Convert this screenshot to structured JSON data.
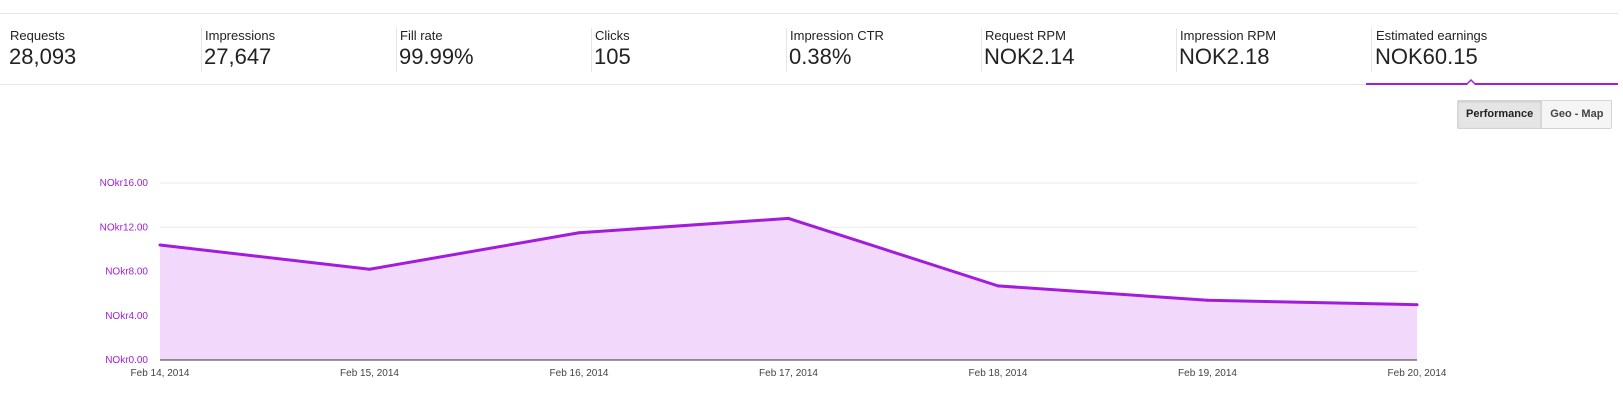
{
  "metrics": [
    {
      "label": "Requests",
      "value": "28,093"
    },
    {
      "label": "Impressions",
      "value": "27,647"
    },
    {
      "label": "Fill rate",
      "value": "99.99%"
    },
    {
      "label": "Clicks",
      "value": "105"
    },
    {
      "label": "Impression CTR",
      "value": "0.38%"
    },
    {
      "label": "Request RPM",
      "value": "NOK2.14"
    },
    {
      "label": "Impression RPM",
      "value": "NOK2.18"
    },
    {
      "label": "Estimated earnings",
      "value": "NOK60.15"
    }
  ],
  "active_metric": "Estimated earnings",
  "view_toggle": {
    "performance_label": "Performance",
    "geo_map_label": "Geo - Map",
    "selected": "Performance"
  },
  "colors": {
    "accent": "#a11cdd",
    "area_fill": "#f2d9fb",
    "gridline": "#ebebeb"
  },
  "chart_data": {
    "type": "area",
    "title": "",
    "xlabel": "",
    "ylabel": "",
    "categories": [
      "Feb 14, 2014",
      "Feb 15, 2014",
      "Feb 16, 2014",
      "Feb 17, 2014",
      "Feb 18, 2014",
      "Feb 19, 2014",
      "Feb 20, 2014"
    ],
    "series": [
      {
        "values": [
          10.4,
          8.2,
          11.5,
          12.8,
          6.7,
          5.4,
          5.0
        ]
      }
    ],
    "yticks": [
      "NOkr0.00",
      "NOkr4.00",
      "NOkr8.00",
      "NOkr12.00",
      "NOkr16.00"
    ],
    "ytick_values": [
      0,
      4,
      8,
      12,
      16
    ],
    "ylim": [
      0,
      16
    ],
    "grid": true,
    "legend": "none"
  }
}
